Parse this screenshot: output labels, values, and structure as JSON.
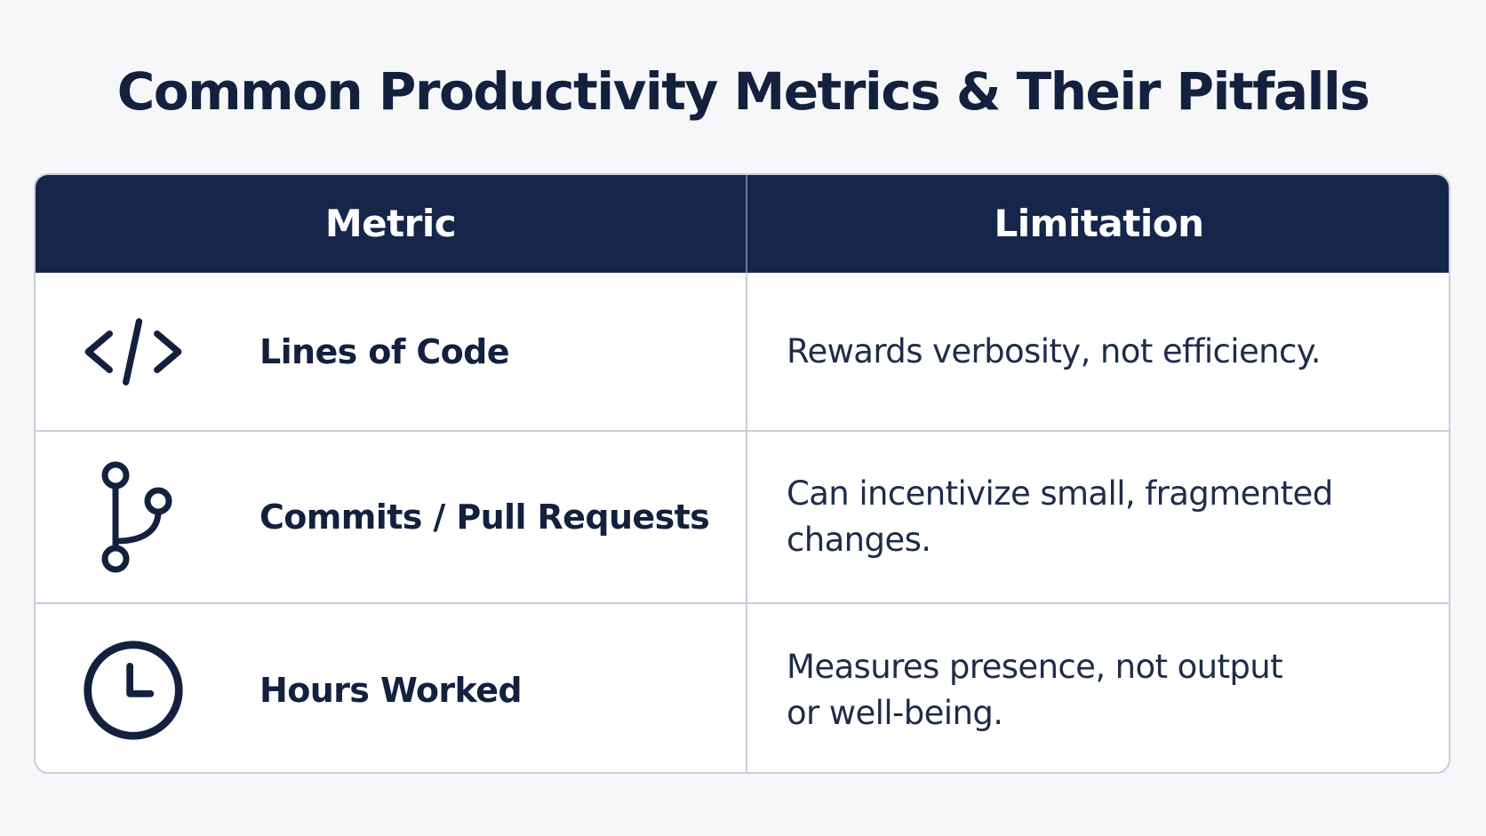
{
  "title": "Common Productivity Metrics & Their Pitfalls",
  "table": {
    "headers": {
      "metric": "Metric",
      "limitation": "Limitation"
    },
    "rows": [
      {
        "icon": "code-icon",
        "metric": "Lines of Code",
        "limitation": "Rewards verbosity, not efficiency."
      },
      {
        "icon": "git-branch-icon",
        "metric": "Commits / Pull Requests",
        "limitation": "Can incentivize small, fragmented changes."
      },
      {
        "icon": "clock-icon",
        "metric": "Hours Worked",
        "limitation": "Measures presence, not output or well-being."
      }
    ]
  },
  "colors": {
    "header_background": "#15264a",
    "text_dark": "#13213f",
    "border": "#c9cedb",
    "page_background": "#f7f7f9"
  }
}
